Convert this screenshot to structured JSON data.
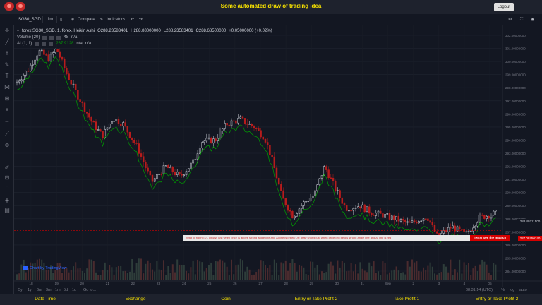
{
  "page": {
    "title": "Some automated draw of trading idea",
    "logout_label": "Logout"
  },
  "toolbar": {
    "symbol": "SG30_SGD",
    "interval": "1m",
    "compare_label": "Compare",
    "indicators_label": "Indicators"
  },
  "legend": {
    "instrument": "forex:SG30_SGD, 1, forex, Heikin Ashi",
    "o": "O288.23583401",
    "h": "H288.88000000",
    "l": "L288.23583401",
    "c": "C288.68500000",
    "change": "+0.05000000 (+0.02%)",
    "volume_label": "Volume (20)",
    "volume_val": "48",
    "volume_na": "n/a",
    "ai_label": "AI (1, 1)",
    "ai_val": "287.9128",
    "ai_na1": "n/a",
    "ai_na2": "n/a"
  },
  "annotation": {
    "text": "Wait till flip RED  -  DRAW just when  price is above strong angle line and AI line is green        OR        draw shorts just when price drill below strong angle line and AI line is red",
    "magic": "THEN See the magic!!"
  },
  "attribution": "Chart by TradingView",
  "price_axis": {
    "ticks": [
      "302.00000000",
      "301.00000000",
      "300.00000000",
      "299.00000000",
      "298.00000000",
      "297.00000000",
      "296.00000000",
      "295.00000000",
      "294.00000000",
      "293.00000000",
      "292.00000000",
      "291.00000000",
      "290.00000000",
      "289.00000000",
      "288.00000000",
      "287.00000000",
      "286.00000000",
      "285.00000000",
      "284.00000000"
    ],
    "last_price": "288.49211500",
    "line_price": "287.09750740"
  },
  "time_axis": {
    "ticks": [
      "18",
      "19",
      "20",
      "21",
      "22",
      "23",
      "24",
      "25",
      "26",
      "27",
      "28",
      "29",
      "30",
      "31",
      "Sep",
      "2",
      "3",
      "4",
      "05"
    ]
  },
  "bottom_bar": {
    "ranges": [
      "5y",
      "1y",
      "6m",
      "3m",
      "1m",
      "5d",
      "1d",
      "Go to..."
    ],
    "clock": "08:31:14 (UTC)",
    "pct": "%",
    "log": "log",
    "auto": "auto"
  },
  "footer": {
    "labels": [
      "Date Time",
      "Exchange",
      "Coin",
      "Entry or Take Profit 2",
      "Take Profit 1",
      "Entry or Take Profit 2"
    ]
  },
  "colors": {
    "up": "#d1d4dc",
    "down": "#b71c1c",
    "ai_line": "#00a000",
    "title": "#f5e000"
  }
}
